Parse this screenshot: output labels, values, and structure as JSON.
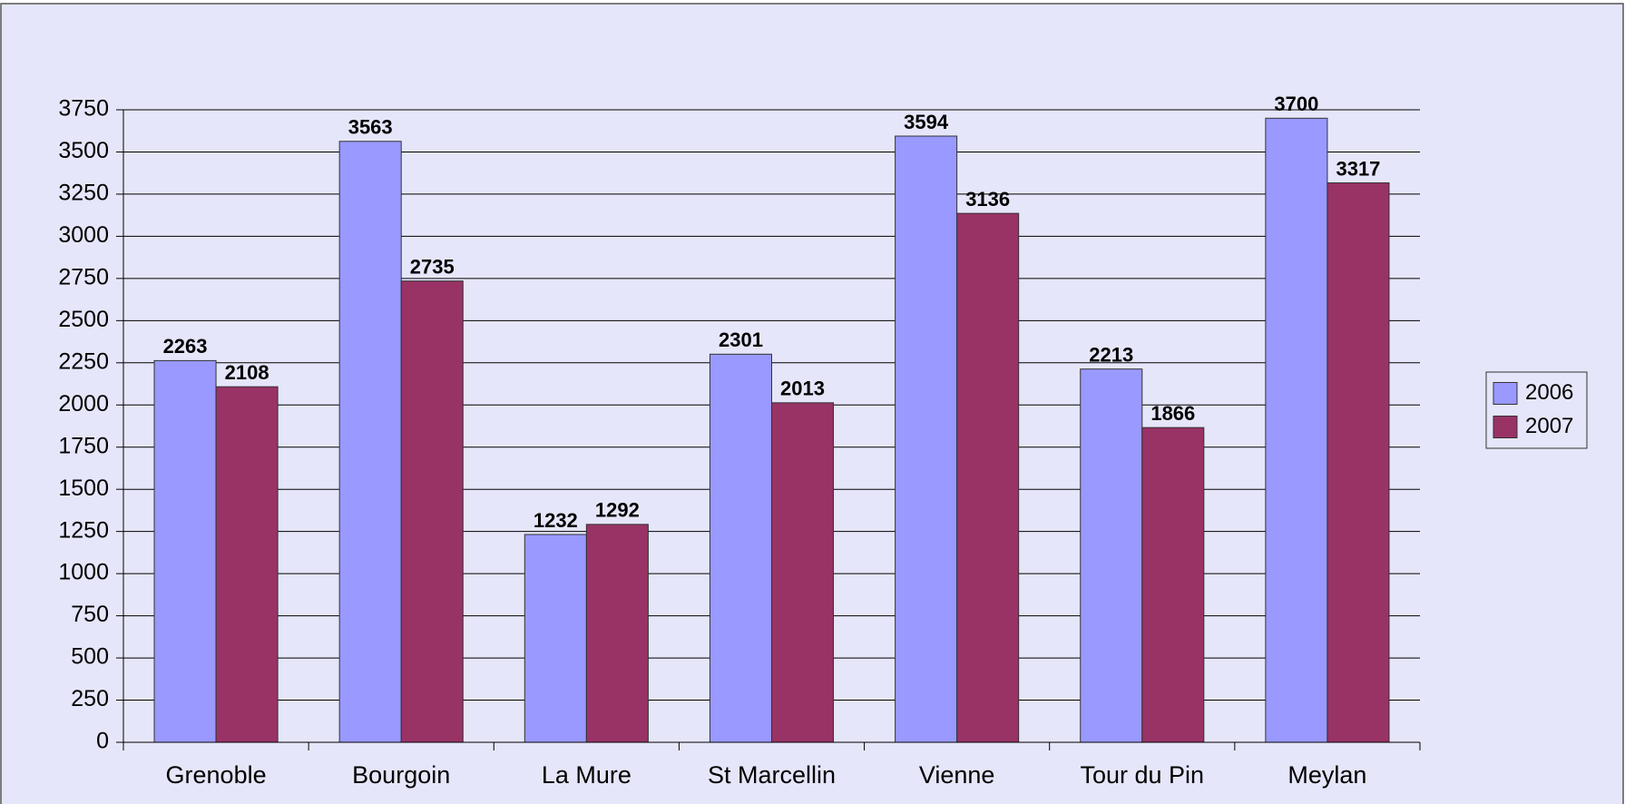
{
  "chart_data": {
    "type": "bar",
    "categories": [
      "Grenoble",
      "Bourgoin",
      "La Mure",
      "St Marcellin",
      "Vienne",
      "Tour du Pin",
      "Meylan"
    ],
    "series": [
      {
        "name": "2006",
        "color": "#9999ff",
        "values": [
          2263,
          3563,
          1232,
          2301,
          3594,
          2213,
          3700
        ]
      },
      {
        "name": "2007",
        "color": "#993366",
        "values": [
          2108,
          2735,
          1292,
          2013,
          3136,
          1866,
          3317
        ]
      }
    ],
    "ylim": [
      0,
      3750
    ],
    "yticks": [
      0,
      250,
      500,
      750,
      1000,
      1250,
      1500,
      1750,
      2000,
      2250,
      2500,
      2750,
      3000,
      3250,
      3500,
      3750
    ],
    "grid": true,
    "legend": "right"
  }
}
